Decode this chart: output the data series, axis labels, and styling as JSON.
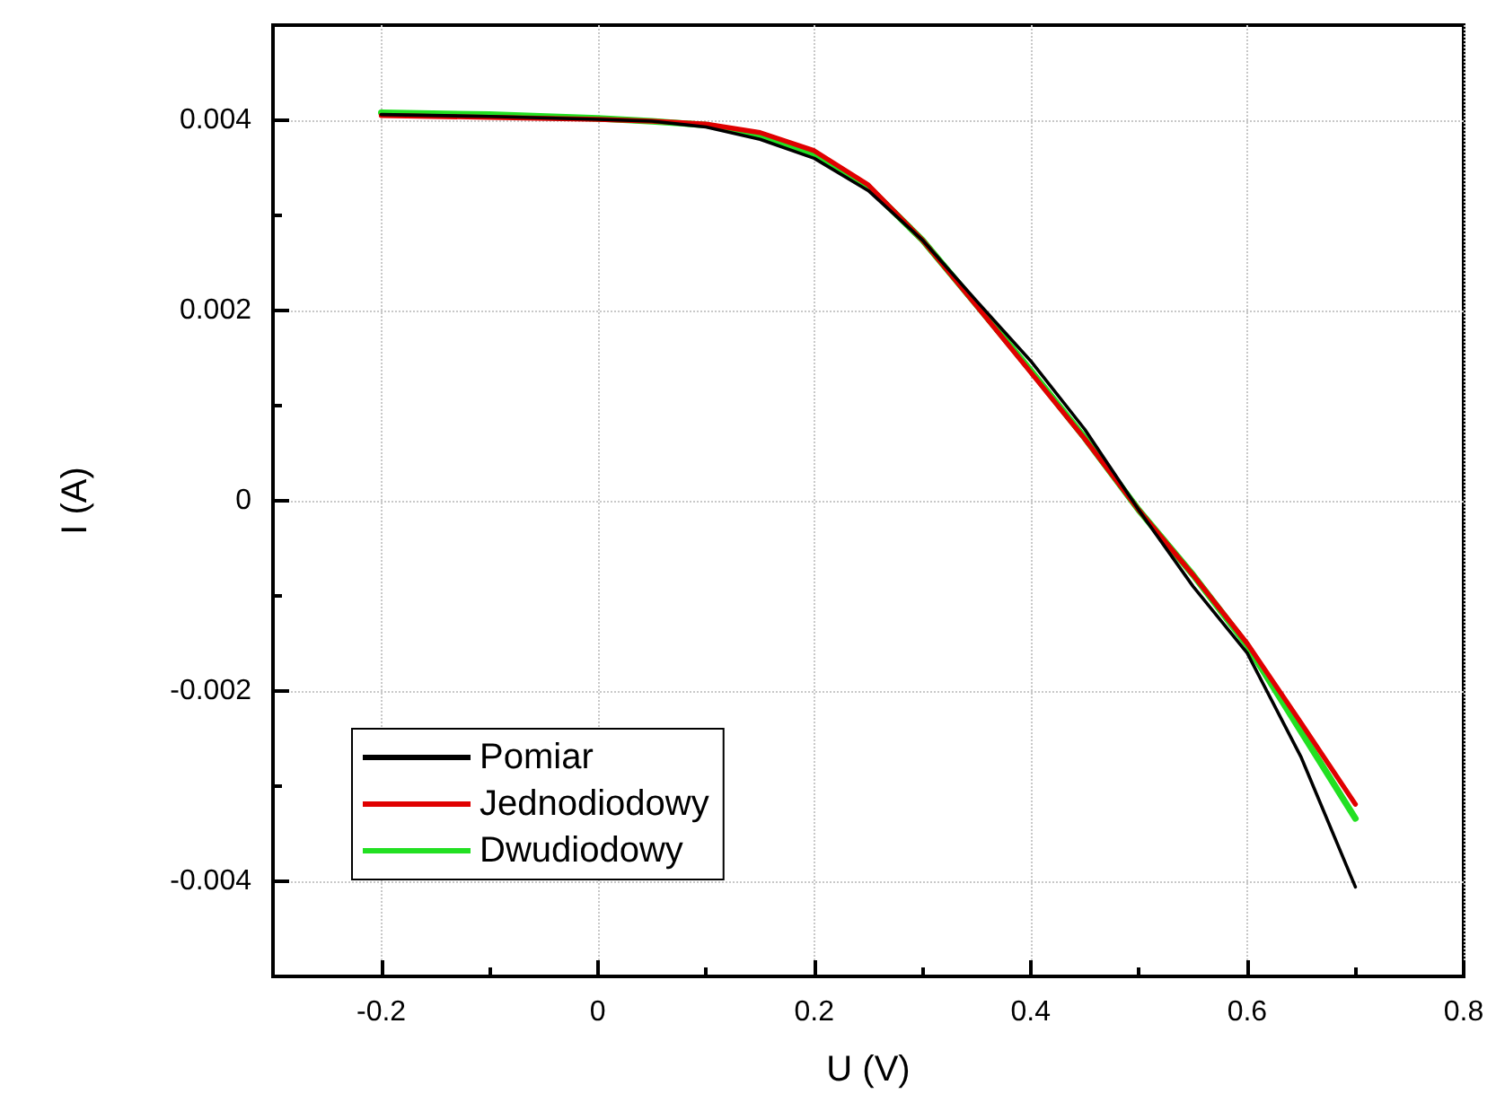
{
  "chart_data": {
    "type": "line",
    "xlabel": "U (V)",
    "ylabel": "I (A)",
    "xlim": [
      -0.3,
      0.8
    ],
    "xticks": [
      -0.2,
      {
        "value": -0.1,
        "label": null
      },
      0,
      {
        "value": 0.1,
        "label": null
      },
      0.2,
      {
        "value": 0.3,
        "label": null
      },
      0.4,
      {
        "value": 0.5,
        "label": null
      },
      0.6,
      {
        "value": 0.7,
        "label": null
      },
      0.8
    ],
    "ylim": [
      -0.005,
      0.005
    ],
    "yticks": [
      {
        "value": -0.005,
        "label": null
      },
      -0.004,
      {
        "value": -0.003,
        "label": null
      },
      -0.002,
      {
        "value": -0.001,
        "label": null
      },
      0,
      {
        "value": 0.001,
        "label": null
      },
      0.002,
      {
        "value": 0.003,
        "label": null
      },
      0.004,
      {
        "value": 0.005,
        "label": null
      }
    ],
    "x": [
      -0.2,
      -0.1,
      0,
      0.05,
      0.1,
      0.15,
      0.2,
      0.25,
      0.3,
      0.35,
      0.4,
      0.45,
      0.5,
      0.55,
      0.6,
      0.65,
      0.7
    ],
    "series": [
      {
        "name": "Pomiar",
        "color": "#000000",
        "values": [
          0.00406,
          0.00404,
          0.00401,
          0.00399,
          0.00393,
          0.0038,
          0.0036,
          0.00326,
          0.00274,
          0.0021,
          0.00147,
          0.00075,
          -0.0001,
          -0.0009,
          -0.0016,
          -0.0027,
          -0.00406
        ]
      },
      {
        "name": "Jednodiodowy",
        "color": "#e00000",
        "values": [
          0.00405,
          0.00403,
          0.00401,
          0.00399,
          0.00396,
          0.00387,
          0.00368,
          0.00332,
          0.00274,
          0.00205,
          0.00135,
          0.00065,
          -0.0001,
          -0.00078,
          -0.0015,
          -0.00234,
          -0.00319
        ]
      },
      {
        "name": "Dwudiodowy",
        "color": "#22e022",
        "values": [
          0.00408,
          0.00406,
          0.00402,
          0.00399,
          0.00395,
          0.00384,
          0.00365,
          0.0033,
          0.00274,
          0.00206,
          0.00137,
          0.00066,
          -0.0001,
          -0.00078,
          -0.00152,
          -0.00243,
          -0.00334
        ]
      }
    ],
    "grid": true,
    "legend": "bottom left",
    "marker": "none",
    "line_style": "solid"
  }
}
